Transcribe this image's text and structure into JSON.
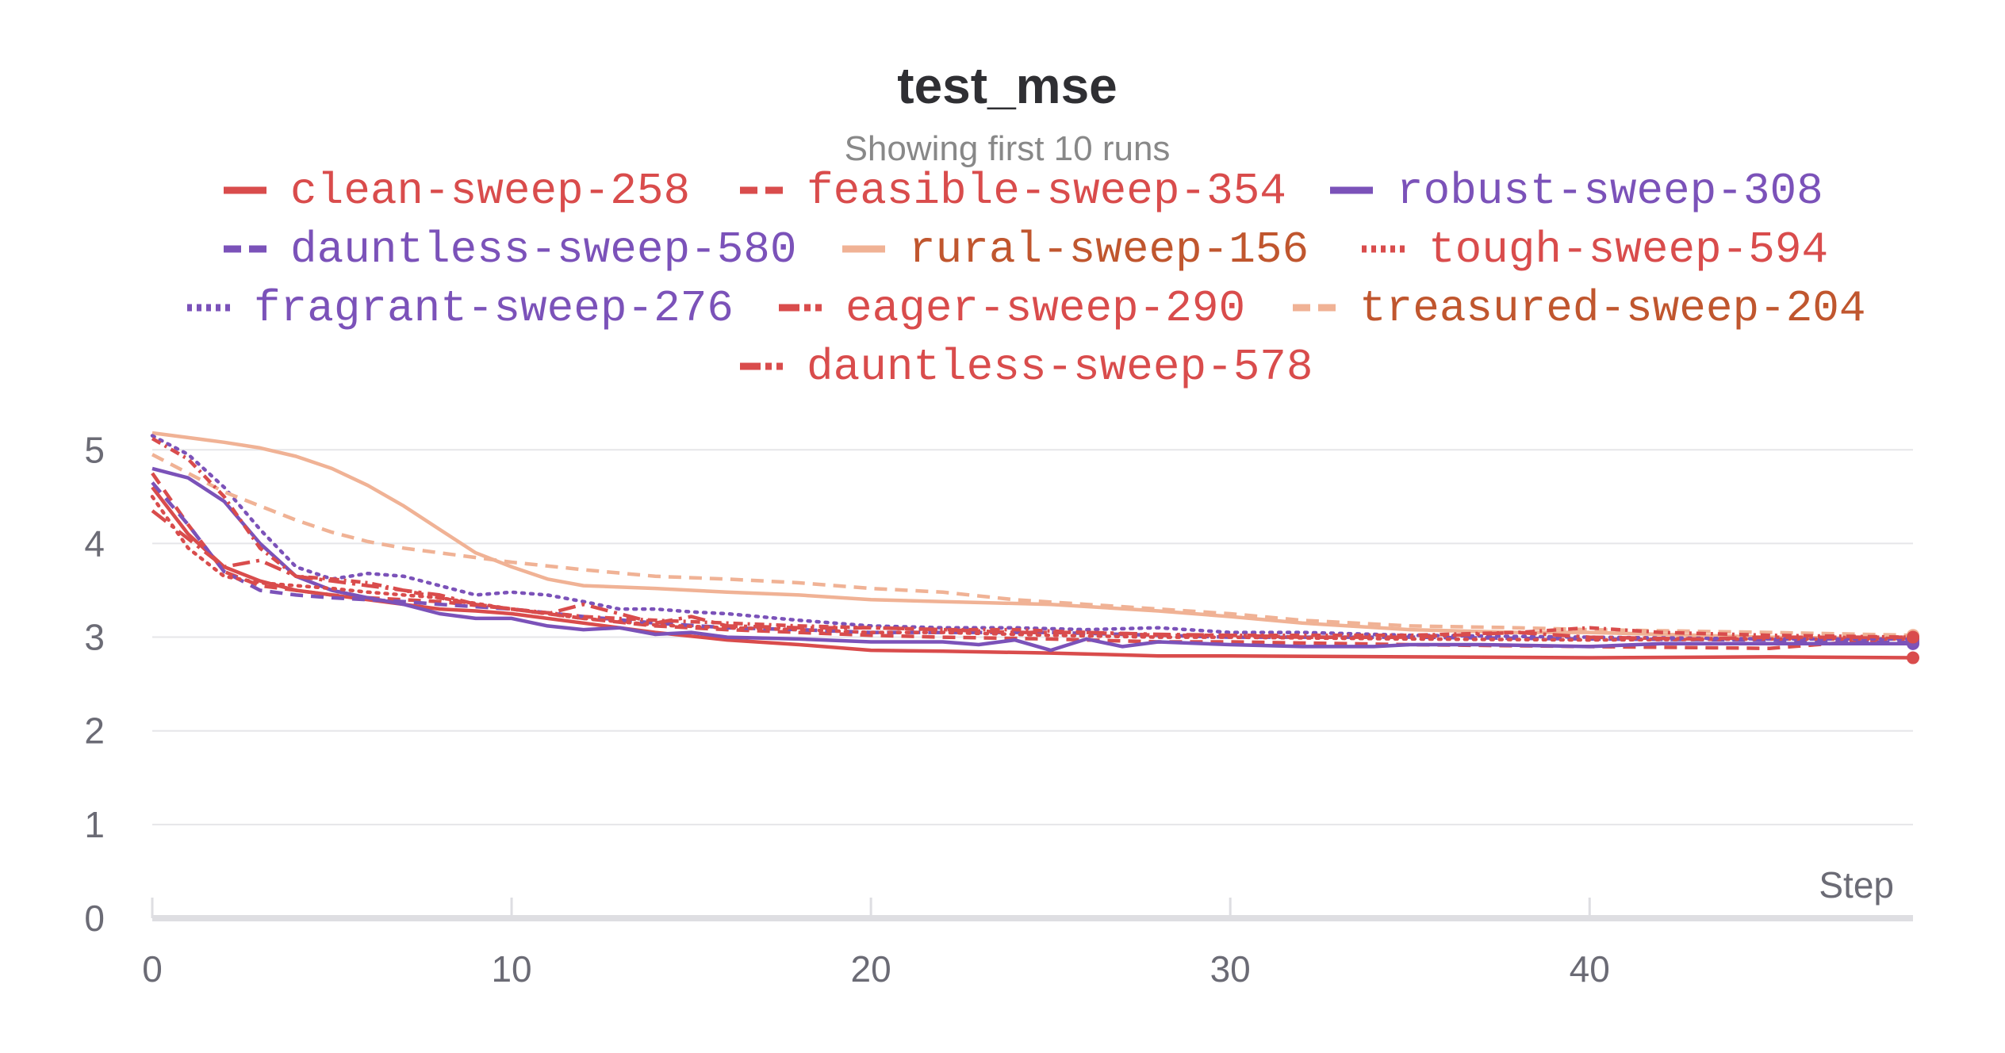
{
  "chart_data": {
    "type": "line",
    "title": "test_mse",
    "subtitle": "Showing first 10 runs",
    "xlabel": "Step",
    "ylabel": "",
    "xlim": [
      0,
      49
    ],
    "ylim": [
      0,
      5.4
    ],
    "xticks": [
      0,
      10,
      20,
      30,
      40
    ],
    "yticks": [
      0,
      1,
      2,
      3,
      4,
      5
    ],
    "grid": true,
    "legend_position": "top",
    "series": [
      {
        "name": "clean-sweep-258",
        "color": "#d94c4c",
        "dash": "solid",
        "label_color": "#d94c4c",
        "points": [
          [
            0,
            4.6
          ],
          [
            1,
            4.1
          ],
          [
            2,
            3.75
          ],
          [
            3,
            3.6
          ],
          [
            4,
            3.5
          ],
          [
            5,
            3.45
          ],
          [
            6,
            3.4
          ],
          [
            7,
            3.35
          ],
          [
            8,
            3.3
          ],
          [
            9,
            3.28
          ],
          [
            10,
            3.25
          ],
          [
            12,
            3.15
          ],
          [
            14,
            3.05
          ],
          [
            16,
            2.97
          ],
          [
            18,
            2.92
          ],
          [
            20,
            2.86
          ],
          [
            22,
            2.85
          ],
          [
            25,
            2.83
          ],
          [
            28,
            2.8
          ],
          [
            30,
            2.8
          ],
          [
            35,
            2.79
          ],
          [
            40,
            2.78
          ],
          [
            45,
            2.79
          ],
          [
            49,
            2.78
          ]
        ]
      },
      {
        "name": "feasible-sweep-354",
        "color": "#d94c4c",
        "dash": "16,10",
        "label_color": "#d94c4c",
        "points": [
          [
            0,
            4.75
          ],
          [
            1,
            4.2
          ],
          [
            2,
            3.7
          ],
          [
            3,
            3.55
          ],
          [
            4,
            3.5
          ],
          [
            5,
            3.45
          ],
          [
            6,
            3.42
          ],
          [
            8,
            3.38
          ],
          [
            10,
            3.3
          ],
          [
            12,
            3.2
          ],
          [
            14,
            3.12
          ],
          [
            16,
            3.08
          ],
          [
            18,
            3.05
          ],
          [
            20,
            3.02
          ],
          [
            22,
            3.0
          ],
          [
            25,
            2.98
          ],
          [
            28,
            2.95
          ],
          [
            30,
            2.95
          ],
          [
            35,
            2.92
          ],
          [
            40,
            2.9
          ],
          [
            45,
            2.88
          ],
          [
            49,
            3.0
          ]
        ]
      },
      {
        "name": "robust-sweep-308",
        "color": "#7b52b9",
        "dash": "solid",
        "label_color": "#7b52b9",
        "points": [
          [
            0,
            4.8
          ],
          [
            1,
            4.7
          ],
          [
            2,
            4.45
          ],
          [
            3,
            4.0
          ],
          [
            4,
            3.65
          ],
          [
            5,
            3.5
          ],
          [
            6,
            3.42
          ],
          [
            7,
            3.35
          ],
          [
            8,
            3.25
          ],
          [
            9,
            3.2
          ],
          [
            10,
            3.2
          ],
          [
            11,
            3.12
          ],
          [
            12,
            3.08
          ],
          [
            13,
            3.1
          ],
          [
            14,
            3.03
          ],
          [
            15,
            3.05
          ],
          [
            16,
            3.0
          ],
          [
            18,
            2.98
          ],
          [
            20,
            2.95
          ],
          [
            22,
            2.95
          ],
          [
            23,
            2.92
          ],
          [
            24,
            2.97
          ],
          [
            25,
            2.86
          ],
          [
            26,
            2.98
          ],
          [
            27,
            2.9
          ],
          [
            28,
            2.95
          ],
          [
            30,
            2.92
          ],
          [
            32,
            2.9
          ],
          [
            34,
            2.9
          ],
          [
            35,
            2.92
          ],
          [
            37,
            2.92
          ],
          [
            40,
            2.9
          ],
          [
            42,
            2.93
          ],
          [
            45,
            2.93
          ],
          [
            49,
            2.93
          ]
        ]
      },
      {
        "name": "dauntless-sweep-580",
        "color": "#7b52b9",
        "dash": "16,10",
        "label_color": "#7b52b9",
        "points": [
          [
            0,
            4.65
          ],
          [
            1,
            4.2
          ],
          [
            2,
            3.7
          ],
          [
            3,
            3.5
          ],
          [
            4,
            3.45
          ],
          [
            5,
            3.42
          ],
          [
            6,
            3.4
          ],
          [
            7,
            3.38
          ],
          [
            8,
            3.35
          ],
          [
            10,
            3.3
          ],
          [
            12,
            3.22
          ],
          [
            14,
            3.15
          ],
          [
            16,
            3.1
          ],
          [
            18,
            3.08
          ],
          [
            20,
            3.05
          ],
          [
            22,
            3.05
          ],
          [
            25,
            3.05
          ],
          [
            28,
            3.02
          ],
          [
            30,
            3.0
          ],
          [
            35,
            3.0
          ],
          [
            40,
            2.98
          ],
          [
            45,
            2.97
          ],
          [
            49,
            2.95
          ]
        ]
      },
      {
        "name": "rural-sweep-156",
        "color": "#f0b295",
        "dash": "solid",
        "label_color": "#c0562e",
        "points": [
          [
            0,
            5.18
          ],
          [
            1,
            5.13
          ],
          [
            2,
            5.08
          ],
          [
            3,
            5.02
          ],
          [
            4,
            4.93
          ],
          [
            5,
            4.8
          ],
          [
            6,
            4.62
          ],
          [
            7,
            4.4
          ],
          [
            8,
            4.15
          ],
          [
            9,
            3.9
          ],
          [
            10,
            3.75
          ],
          [
            11,
            3.62
          ],
          [
            12,
            3.55
          ],
          [
            14,
            3.52
          ],
          [
            16,
            3.48
          ],
          [
            18,
            3.45
          ],
          [
            20,
            3.4
          ],
          [
            22,
            3.38
          ],
          [
            25,
            3.35
          ],
          [
            28,
            3.28
          ],
          [
            30,
            3.22
          ],
          [
            32,
            3.15
          ],
          [
            35,
            3.08
          ],
          [
            38,
            3.05
          ],
          [
            40,
            3.05
          ],
          [
            45,
            3.0
          ],
          [
            49,
            2.98
          ]
        ]
      },
      {
        "name": "tough-sweep-594",
        "color": "#d94c4c",
        "dash": "3,8",
        "label_color": "#d94c4c",
        "points": [
          [
            0,
            4.5
          ],
          [
            1,
            3.95
          ],
          [
            2,
            3.65
          ],
          [
            3,
            3.58
          ],
          [
            4,
            3.55
          ],
          [
            5,
            3.52
          ],
          [
            6,
            3.48
          ],
          [
            8,
            3.42
          ],
          [
            10,
            3.3
          ],
          [
            12,
            3.2
          ],
          [
            14,
            3.13
          ],
          [
            16,
            3.1
          ],
          [
            18,
            3.08
          ],
          [
            20,
            3.05
          ],
          [
            22,
            3.05
          ],
          [
            25,
            3.02
          ],
          [
            28,
            3.0
          ],
          [
            30,
            3.0
          ],
          [
            35,
            2.98
          ],
          [
            40,
            2.97
          ],
          [
            45,
            2.98
          ],
          [
            49,
            2.98
          ]
        ]
      },
      {
        "name": "fragrant-sweep-276",
        "color": "#7b52b9",
        "dash": "3,8",
        "label_color": "#7b52b9",
        "points": [
          [
            0,
            5.15
          ],
          [
            1,
            4.95
          ],
          [
            2,
            4.6
          ],
          [
            3,
            4.15
          ],
          [
            4,
            3.75
          ],
          [
            5,
            3.62
          ],
          [
            6,
            3.68
          ],
          [
            7,
            3.65
          ],
          [
            8,
            3.55
          ],
          [
            9,
            3.45
          ],
          [
            10,
            3.48
          ],
          [
            11,
            3.45
          ],
          [
            12,
            3.38
          ],
          [
            13,
            3.3
          ],
          [
            14,
            3.3
          ],
          [
            15,
            3.27
          ],
          [
            16,
            3.25
          ],
          [
            18,
            3.18
          ],
          [
            20,
            3.12
          ],
          [
            22,
            3.1
          ],
          [
            24,
            3.1
          ],
          [
            26,
            3.08
          ],
          [
            28,
            3.1
          ],
          [
            30,
            3.05
          ],
          [
            32,
            3.05
          ],
          [
            35,
            3.02
          ],
          [
            40,
            3.0
          ],
          [
            45,
            2.98
          ],
          [
            49,
            2.98
          ]
        ]
      },
      {
        "name": "eager-sweep-290",
        "color": "#d94c4c",
        "dash": "22,8,4,8",
        "label_color": "#d94c4c",
        "points": [
          [
            0,
            4.35
          ],
          [
            1,
            4.05
          ],
          [
            2,
            3.75
          ],
          [
            3,
            3.82
          ],
          [
            4,
            3.65
          ],
          [
            5,
            3.6
          ],
          [
            6,
            3.55
          ],
          [
            7,
            3.5
          ],
          [
            8,
            3.45
          ],
          [
            9,
            3.35
          ],
          [
            10,
            3.3
          ],
          [
            11,
            3.25
          ],
          [
            12,
            3.35
          ],
          [
            13,
            3.25
          ],
          [
            14,
            3.15
          ],
          [
            15,
            3.22
          ],
          [
            16,
            3.12
          ],
          [
            18,
            3.1
          ],
          [
            20,
            3.1
          ],
          [
            22,
            3.08
          ],
          [
            24,
            3.05
          ],
          [
            26,
            3.05
          ],
          [
            28,
            3.03
          ],
          [
            30,
            3.02
          ],
          [
            32,
            3.0
          ],
          [
            35,
            3.0
          ],
          [
            38,
            3.05
          ],
          [
            40,
            3.0
          ],
          [
            43,
            2.98
          ],
          [
            45,
            3.0
          ],
          [
            49,
            3.0
          ]
        ]
      },
      {
        "name": "treasured-sweep-204",
        "color": "#f0b295",
        "dash": "16,10",
        "label_color": "#c0562e",
        "points": [
          [
            0,
            4.95
          ],
          [
            1,
            4.75
          ],
          [
            2,
            4.55
          ],
          [
            3,
            4.4
          ],
          [
            4,
            4.25
          ],
          [
            5,
            4.12
          ],
          [
            6,
            4.02
          ],
          [
            7,
            3.95
          ],
          [
            8,
            3.9
          ],
          [
            9,
            3.85
          ],
          [
            10,
            3.8
          ],
          [
            12,
            3.72
          ],
          [
            14,
            3.65
          ],
          [
            16,
            3.62
          ],
          [
            18,
            3.58
          ],
          [
            20,
            3.52
          ],
          [
            22,
            3.48
          ],
          [
            24,
            3.4
          ],
          [
            26,
            3.35
          ],
          [
            28,
            3.3
          ],
          [
            30,
            3.25
          ],
          [
            32,
            3.18
          ],
          [
            35,
            3.12
          ],
          [
            38,
            3.1
          ],
          [
            40,
            3.08
          ],
          [
            45,
            3.05
          ],
          [
            49,
            3.02
          ]
        ]
      },
      {
        "name": "dauntless-sweep-578",
        "color": "#d94c4c",
        "dash": "12,6,3,6",
        "label_color": "#d94c4c",
        "points": [
          [
            0,
            5.12
          ],
          [
            1,
            4.9
          ],
          [
            2,
            4.5
          ],
          [
            3,
            3.95
          ],
          [
            4,
            3.65
          ],
          [
            5,
            3.62
          ],
          [
            6,
            3.58
          ],
          [
            7,
            3.5
          ],
          [
            8,
            3.42
          ],
          [
            9,
            3.35
          ],
          [
            10,
            3.3
          ],
          [
            12,
            3.22
          ],
          [
            14,
            3.18
          ],
          [
            16,
            3.15
          ],
          [
            18,
            3.12
          ],
          [
            20,
            3.1
          ],
          [
            22,
            3.08
          ],
          [
            24,
            3.08
          ],
          [
            26,
            3.05
          ],
          [
            28,
            3.02
          ],
          [
            30,
            3.02
          ],
          [
            35,
            3.02
          ],
          [
            38,
            3.05
          ],
          [
            40,
            3.1
          ],
          [
            42,
            3.05
          ],
          [
            45,
            3.02
          ],
          [
            49,
            3.0
          ]
        ]
      }
    ]
  }
}
